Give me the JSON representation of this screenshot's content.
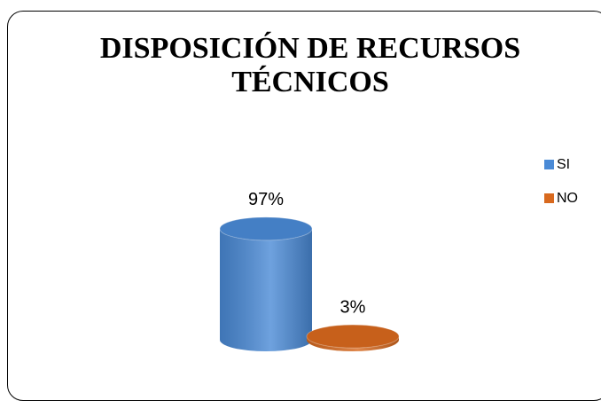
{
  "chart_data": {
    "type": "cylinder-bar",
    "title": "DISPOSICIÓN DE RECURSOS TÉCNICOS",
    "categories": [
      "SI",
      "NO"
    ],
    "values": [
      97,
      3
    ],
    "value_labels": [
      "97%",
      "3%"
    ],
    "colors": [
      "#4a8ad6",
      "#d8691e"
    ],
    "legend": "right"
  }
}
